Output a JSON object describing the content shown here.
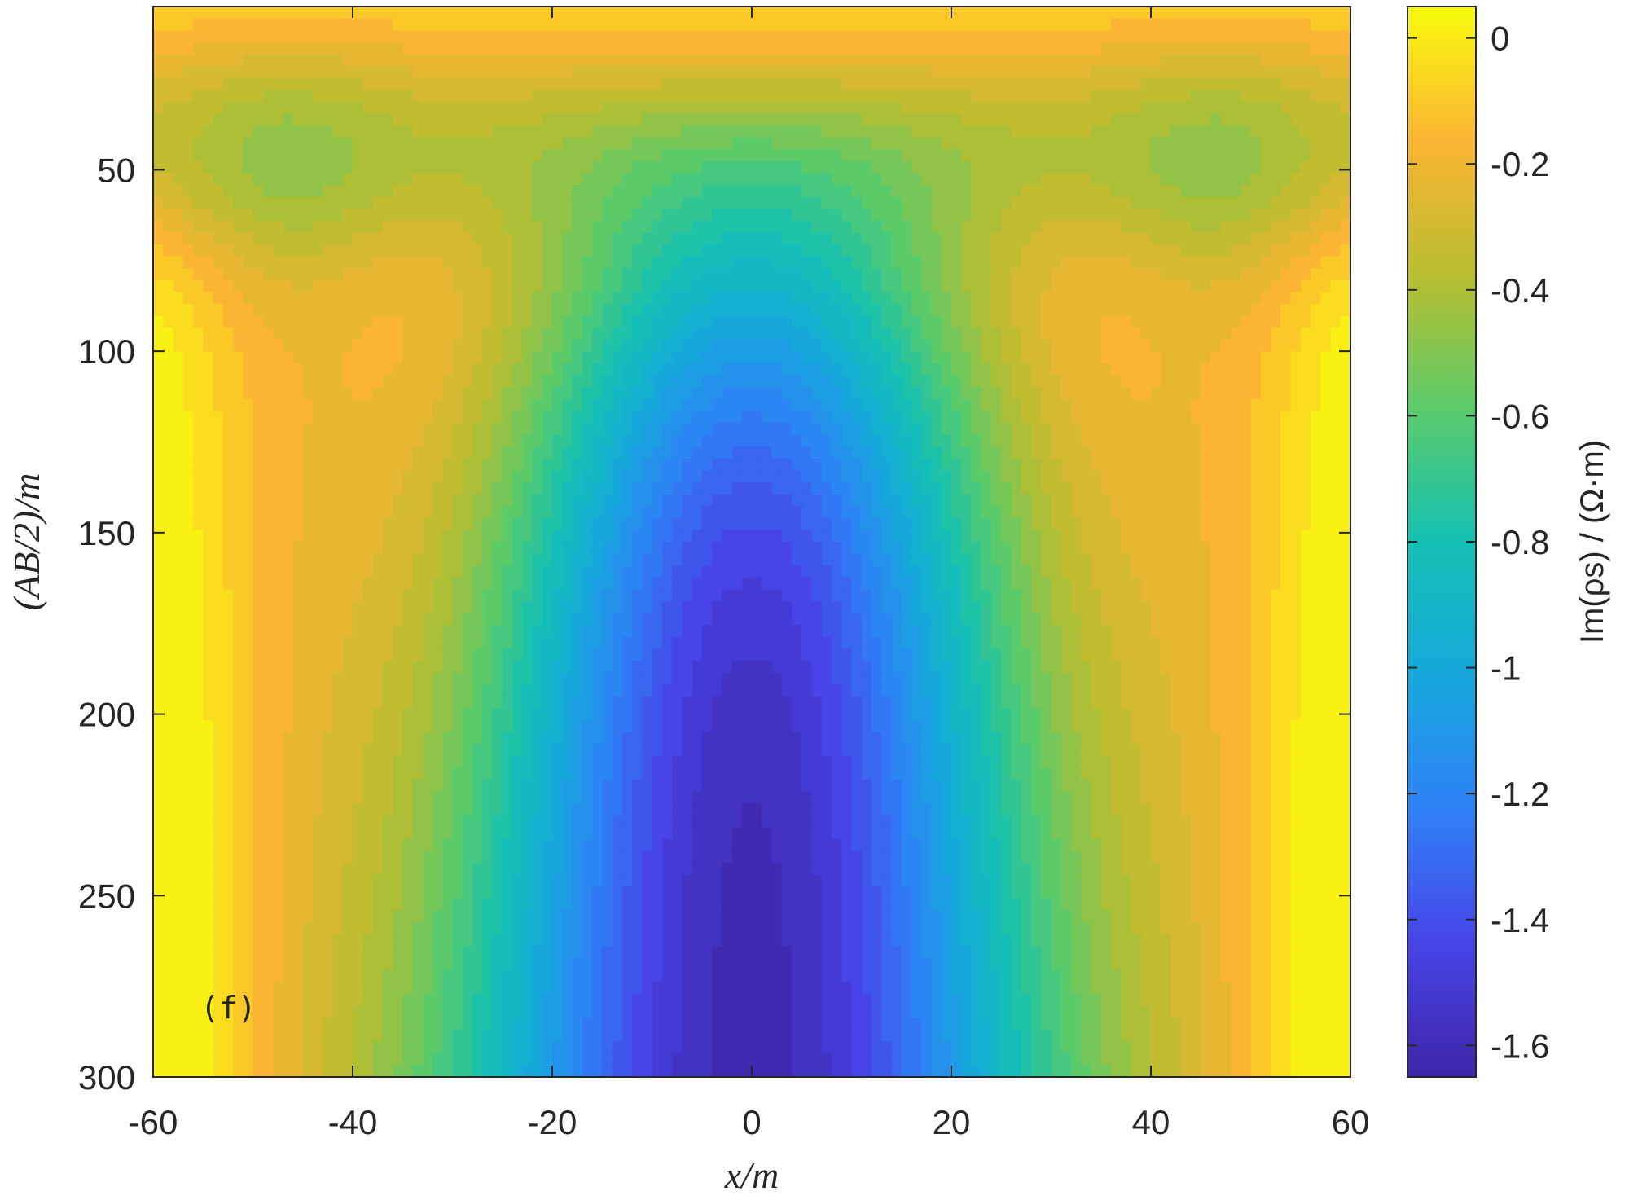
{
  "chart_data": {
    "type": "heatmap",
    "subtype": "filled-contour",
    "panel_label": "(f)",
    "xlabel": "x/m",
    "ylabel": "(AB/2)/m",
    "colorbar_label": "Im(ρs) / (Ω·m)",
    "xlim": [
      -60,
      60
    ],
    "ylim": [
      300,
      5
    ],
    "y_reversed": true,
    "x_ticks": [
      -60,
      -40,
      -20,
      0,
      20,
      40,
      60
    ],
    "x_tick_labels": [
      "-60",
      "-40",
      "-20",
      "0",
      "20",
      "40",
      "60"
    ],
    "y_ticks": [
      50,
      100,
      150,
      200,
      250,
      300
    ],
    "y_tick_labels": [
      "50",
      "100",
      "150",
      "200",
      "250",
      "300"
    ],
    "colorbar_range": [
      -1.65,
      0.05
    ],
    "colorbar_ticks": [
      0,
      -0.2,
      -0.4,
      -0.6,
      -0.8,
      -1,
      -1.2,
      -1.4,
      -1.6
    ],
    "colorbar_tick_labels": [
      "0",
      "-0.2",
      "-0.4",
      "-0.6",
      "-0.8",
      "-1",
      "-1.2",
      "-1.4",
      "-1.6"
    ],
    "colormap": "parula",
    "contour_levels": 28,
    "approx_field": {
      "description_of_pattern": "symmetric about x=0; minimum about -1.6 at x=0 deep; near 0 at top and at lateral edges deep",
      "min_value": -1.6,
      "max_value": 0.03
    },
    "grid": false
  }
}
